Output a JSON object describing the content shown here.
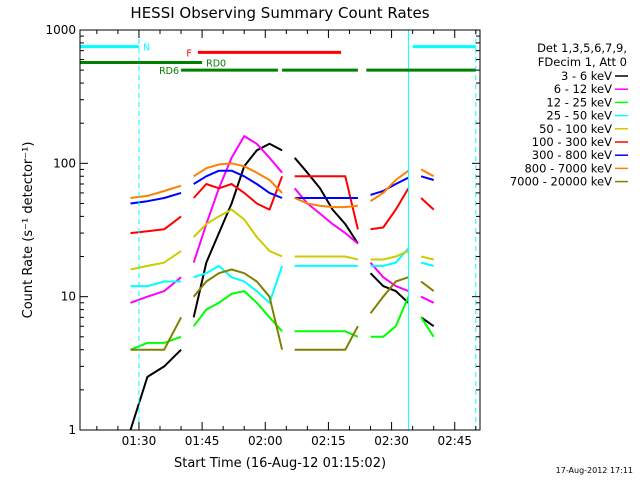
{
  "chart_data": {
    "type": "line",
    "title": "HESSI Observing Summary Count Rates",
    "xlabel": "Start Time (16-Aug-12 01:15:02)",
    "ylabel": "Count Rate (s⁻¹ detector⁻¹)",
    "y_scale": "log",
    "ylim": [
      1,
      1000
    ],
    "xlim": [
      "01:16",
      "02:51"
    ],
    "x_tick_labels": [
      "01:30",
      "01:45",
      "02:00",
      "02:15",
      "02:30",
      "02:45"
    ],
    "y_tick_labels": [
      "1",
      "10",
      "100",
      "1000"
    ],
    "grid": false,
    "legend_position": "right",
    "legend_header": [
      "Det 1,3,5,6,7,9,",
      "FDecim 1, Att 0"
    ],
    "timestamp": "17-Aug-2012 17:11",
    "segments": [
      [
        "01:16",
        "01:27"
      ],
      [
        "01:28",
        "01:40"
      ],
      [
        "01:40",
        "02:04"
      ],
      [
        "02:04",
        "02:22"
      ],
      [
        "02:22",
        "02:35"
      ],
      [
        "02:35",
        "02:42"
      ]
    ],
    "series": [
      {
        "name": "3 - 6 keV",
        "color": "#000000",
        "points": [
          [
            "01:28",
            1
          ],
          [
            "01:32",
            2.5
          ],
          [
            "01:36",
            3
          ],
          [
            "01:40",
            4
          ],
          [
            "01:43",
            7
          ],
          [
            "01:46",
            18
          ],
          [
            "01:49",
            30
          ],
          [
            "01:52",
            50
          ],
          [
            "01:55",
            95
          ],
          [
            "01:58",
            125
          ],
          [
            "02:01",
            140
          ],
          [
            "02:04",
            125
          ],
          [
            "02:07",
            110
          ],
          [
            "02:10",
            85
          ],
          [
            "02:13",
            65
          ],
          [
            "02:16",
            45
          ],
          [
            "02:19",
            35
          ],
          [
            "02:22",
            25
          ],
          [
            "02:25",
            15
          ],
          [
            "02:28",
            12
          ],
          [
            "02:31",
            11
          ],
          [
            "02:34",
            9
          ],
          [
            "02:37",
            7
          ],
          [
            "02:40",
            6
          ]
        ]
      },
      {
        "name": "6 - 12 keV",
        "color": "#ff00ff",
        "points": [
          [
            "01:28",
            9
          ],
          [
            "01:32",
            10
          ],
          [
            "01:36",
            11
          ],
          [
            "01:40",
            14
          ],
          [
            "01:43",
            18
          ],
          [
            "01:46",
            35
          ],
          [
            "01:49",
            65
          ],
          [
            "01:52",
            110
          ],
          [
            "01:55",
            160
          ],
          [
            "01:58",
            140
          ],
          [
            "02:01",
            110
          ],
          [
            "02:04",
            85
          ],
          [
            "02:07",
            65
          ],
          [
            "02:10",
            50
          ],
          [
            "02:13",
            42
          ],
          [
            "02:16",
            35
          ],
          [
            "02:19",
            30
          ],
          [
            "02:22",
            25
          ],
          [
            "02:25",
            18
          ],
          [
            "02:28",
            14
          ],
          [
            "02:31",
            12
          ],
          [
            "02:34",
            11
          ],
          [
            "02:37",
            10
          ],
          [
            "02:40",
            9
          ]
        ]
      },
      {
        "name": "12 - 25 keV",
        "color": "#00ff00",
        "points": [
          [
            "01:28",
            4
          ],
          [
            "01:32",
            4.5
          ],
          [
            "01:36",
            4.5
          ],
          [
            "01:40",
            5
          ],
          [
            "01:43",
            6
          ],
          [
            "01:46",
            8
          ],
          [
            "01:49",
            9
          ],
          [
            "01:52",
            10.5
          ],
          [
            "01:55",
            11
          ],
          [
            "01:58",
            9
          ],
          [
            "02:01",
            7
          ],
          [
            "02:04",
            5.5
          ],
          [
            "02:07",
            5.5
          ],
          [
            "02:10",
            5.5
          ],
          [
            "02:13",
            5.5
          ],
          [
            "02:16",
            5.5
          ],
          [
            "02:19",
            5.5
          ],
          [
            "02:22",
            5
          ],
          [
            "02:25",
            5
          ],
          [
            "02:28",
            5
          ],
          [
            "02:31",
            6
          ],
          [
            "02:34",
            10
          ],
          [
            "02:37",
            7
          ],
          [
            "02:40",
            5
          ]
        ]
      },
      {
        "name": "25 - 50 keV",
        "color": "#00ffff",
        "points": [
          [
            "01:28",
            12
          ],
          [
            "01:32",
            12
          ],
          [
            "01:36",
            13
          ],
          [
            "01:40",
            13
          ],
          [
            "01:43",
            14
          ],
          [
            "01:46",
            15
          ],
          [
            "01:49",
            17
          ],
          [
            "01:52",
            14
          ],
          [
            "01:55",
            13
          ],
          [
            "01:58",
            11
          ],
          [
            "02:01",
            9
          ],
          [
            "02:04",
            17
          ],
          [
            "02:07",
            17
          ],
          [
            "02:10",
            17
          ],
          [
            "02:13",
            17
          ],
          [
            "02:16",
            17
          ],
          [
            "02:19",
            17
          ],
          [
            "02:22",
            17
          ],
          [
            "02:25",
            17
          ],
          [
            "02:28",
            17
          ],
          [
            "02:31",
            18
          ],
          [
            "02:34",
            23
          ],
          [
            "02:37",
            18
          ],
          [
            "02:40",
            17
          ]
        ]
      },
      {
        "name": "50 - 100 keV",
        "color": "#cccc00",
        "points": [
          [
            "01:28",
            16
          ],
          [
            "01:32",
            17
          ],
          [
            "01:36",
            18
          ],
          [
            "01:40",
            22
          ],
          [
            "01:43",
            28
          ],
          [
            "01:46",
            35
          ],
          [
            "01:49",
            40
          ],
          [
            "01:52",
            45
          ],
          [
            "01:55",
            38
          ],
          [
            "01:58",
            28
          ],
          [
            "02:01",
            22
          ],
          [
            "02:04",
            20
          ],
          [
            "02:07",
            20
          ],
          [
            "02:10",
            20
          ],
          [
            "02:13",
            20
          ],
          [
            "02:16",
            20
          ],
          [
            "02:19",
            20
          ],
          [
            "02:22",
            19
          ],
          [
            "02:25",
            19
          ],
          [
            "02:28",
            19
          ],
          [
            "02:31",
            20
          ],
          [
            "02:34",
            22
          ],
          [
            "02:37",
            20
          ],
          [
            "02:40",
            19
          ]
        ]
      },
      {
        "name": "100 - 300 keV",
        "color": "#ff0000",
        "points": [
          [
            "01:28",
            30
          ],
          [
            "01:32",
            31
          ],
          [
            "01:36",
            32
          ],
          [
            "01:40",
            40
          ],
          [
            "01:43",
            55
          ],
          [
            "01:46",
            70
          ],
          [
            "01:49",
            65
          ],
          [
            "01:52",
            70
          ],
          [
            "01:55",
            60
          ],
          [
            "01:58",
            50
          ],
          [
            "02:01",
            45
          ],
          [
            "02:04",
            80
          ],
          [
            "02:07",
            80
          ],
          [
            "02:10",
            80
          ],
          [
            "02:13",
            80
          ],
          [
            "02:16",
            80
          ],
          [
            "02:19",
            80
          ],
          [
            "02:22",
            32
          ],
          [
            "02:25",
            32
          ],
          [
            "02:28",
            33
          ],
          [
            "02:31",
            45
          ],
          [
            "02:34",
            65
          ],
          [
            "02:37",
            55
          ],
          [
            "02:40",
            45
          ]
        ]
      },
      {
        "name": "300 - 800 keV",
        "color": "#0000ff",
        "points": [
          [
            "01:28",
            50
          ],
          [
            "01:32",
            52
          ],
          [
            "01:36",
            55
          ],
          [
            "01:40",
            60
          ],
          [
            "01:43",
            70
          ],
          [
            "01:46",
            80
          ],
          [
            "01:49",
            88
          ],
          [
            "01:52",
            88
          ],
          [
            "01:55",
            80
          ],
          [
            "01:58",
            70
          ],
          [
            "02:01",
            60
          ],
          [
            "02:04",
            55
          ],
          [
            "02:07",
            55
          ],
          [
            "02:10",
            55
          ],
          [
            "02:13",
            55
          ],
          [
            "02:16",
            55
          ],
          [
            "02:19",
            55
          ],
          [
            "02:22",
            55
          ],
          [
            "02:25",
            58
          ],
          [
            "02:28",
            62
          ],
          [
            "02:31",
            70
          ],
          [
            "02:34",
            78
          ],
          [
            "02:37",
            80
          ],
          [
            "02:40",
            75
          ]
        ]
      },
      {
        "name": "800 - 7000 keV",
        "color": "#ff8000",
        "points": [
          [
            "01:28",
            55
          ],
          [
            "01:32",
            57
          ],
          [
            "01:36",
            62
          ],
          [
            "01:40",
            68
          ],
          [
            "01:43",
            80
          ],
          [
            "01:46",
            92
          ],
          [
            "01:49",
            98
          ],
          [
            "01:52",
            100
          ],
          [
            "01:55",
            95
          ],
          [
            "01:58",
            85
          ],
          [
            "02:01",
            75
          ],
          [
            "02:04",
            60
          ],
          [
            "02:07",
            55
          ],
          [
            "02:10",
            50
          ],
          [
            "02:13",
            48
          ],
          [
            "02:16",
            47
          ],
          [
            "02:19",
            47
          ],
          [
            "02:22",
            48
          ],
          [
            "02:25",
            52
          ],
          [
            "02:28",
            60
          ],
          [
            "02:31",
            75
          ],
          [
            "02:34",
            88
          ],
          [
            "02:37",
            90
          ],
          [
            "02:40",
            80
          ]
        ]
      },
      {
        "name": "7000 - 20000 keV",
        "color": "#808000",
        "points": [
          [
            "01:28",
            4
          ],
          [
            "01:32",
            4
          ],
          [
            "01:36",
            4
          ],
          [
            "01:40",
            7
          ],
          [
            "01:43",
            10
          ],
          [
            "01:46",
            13
          ],
          [
            "01:49",
            15
          ],
          [
            "01:52",
            16
          ],
          [
            "01:55",
            15
          ],
          [
            "01:58",
            13
          ],
          [
            "02:01",
            10
          ],
          [
            "02:04",
            4
          ],
          [
            "02:07",
            4
          ],
          [
            "02:10",
            4
          ],
          [
            "02:13",
            4
          ],
          [
            "02:16",
            4
          ],
          [
            "02:19",
            4
          ],
          [
            "02:22",
            6
          ],
          [
            "02:25",
            7.5
          ],
          [
            "02:28",
            10
          ],
          [
            "02:31",
            13
          ],
          [
            "02:34",
            14
          ],
          [
            "02:37",
            13
          ],
          [
            "02:40",
            11
          ]
        ]
      }
    ],
    "state_bars": [
      {
        "label": "N",
        "color": "#00ffff",
        "y": 750,
        "spans": [
          [
            "01:16",
            "01:30"
          ],
          [
            "02:35",
            "02:50"
          ]
        ]
      },
      {
        "label": "F",
        "color": "#ff0000",
        "y": 680,
        "spans": [
          [
            "01:44",
            "02:18"
          ]
        ]
      },
      {
        "label": "RD0",
        "color": "#008000",
        "y": 570,
        "spans": [
          [
            "01:16",
            "01:45"
          ]
        ]
      },
      {
        "label": "RD6",
        "color": "#008000",
        "y": 500,
        "spans": [
          [
            "01:40",
            "02:03"
          ],
          [
            "02:04",
            "02:22"
          ],
          [
            "02:24",
            "02:50"
          ]
        ]
      }
    ],
    "cyan_dashed_times": [
      "01:30",
      "02:50"
    ],
    "cyan_solid_times": [
      "01:16",
      "02:34"
    ]
  }
}
